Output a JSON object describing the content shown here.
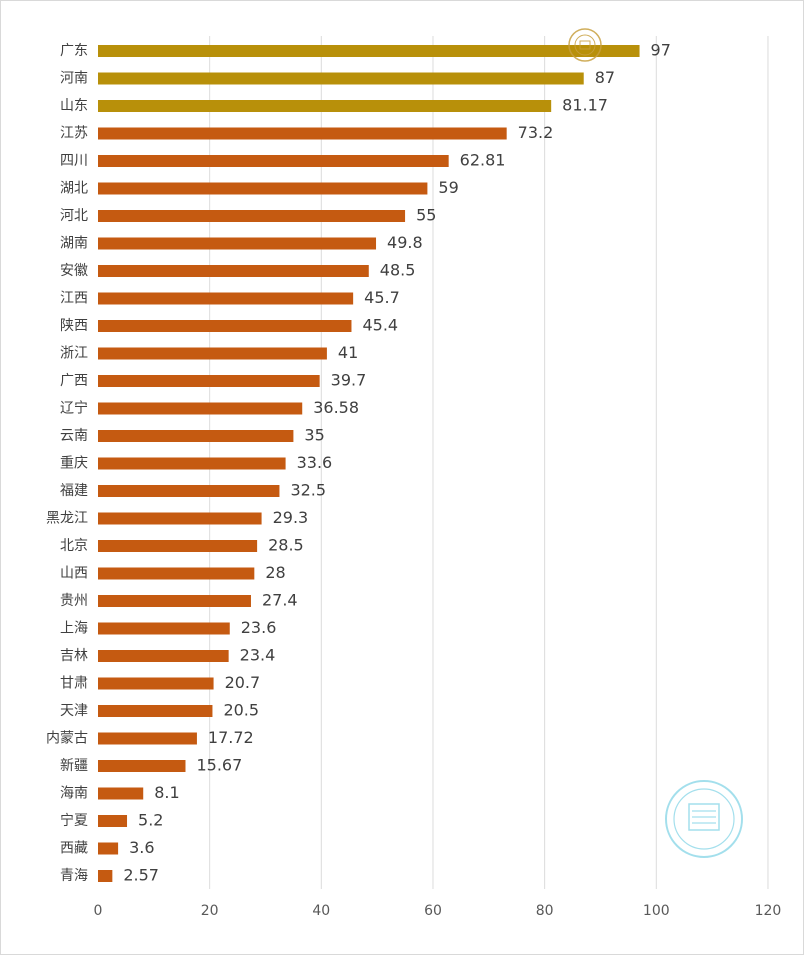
{
  "chart_data": {
    "type": "bar",
    "orientation": "horizontal",
    "categories": [
      "广东",
      "河南",
      "山东",
      "江苏",
      "四川",
      "湖北",
      "河北",
      "湖南",
      "安徽",
      "江西",
      "陕西",
      "浙江",
      "广西",
      "辽宁",
      "云南",
      "重庆",
      "福建",
      "黑龙江",
      "北京",
      "山西",
      "贵州",
      "上海",
      "吉林",
      "甘肃",
      "天津",
      "内蒙古",
      "新疆",
      "海南",
      "宁夏",
      "西藏",
      "青海"
    ],
    "values": [
      97,
      87,
      81.17,
      73.2,
      62.81,
      59,
      55,
      49.8,
      48.5,
      45.7,
      45.4,
      41,
      39.7,
      36.58,
      35,
      33.6,
      32.5,
      29.3,
      28.5,
      28,
      27.4,
      23.6,
      23.4,
      20.7,
      20.5,
      17.72,
      15.67,
      8.1,
      5.2,
      3.6,
      2.57
    ],
    "value_labels": [
      "97",
      "87",
      "81.17",
      "73.2",
      "62.81",
      "59",
      "55",
      "49.8",
      "48.5",
      "45.7",
      "45.4",
      "41",
      "39.7",
      "36.58",
      "35",
      "33.6",
      "32.5",
      "29.3",
      "28.5",
      "28",
      "27.4",
      "23.6",
      "23.4",
      "20.7",
      "20.5",
      "17.72",
      "15.67",
      "8.1",
      "5.2",
      "3.6",
      "2.57"
    ],
    "highlight_count": 3,
    "colors": {
      "highlight": "#B8900A",
      "default": "#C55A11"
    },
    "xlim": [
      0,
      120
    ],
    "xticks": [
      "0",
      "20",
      "40",
      "60",
      "80",
      "100",
      "120"
    ],
    "grid": "vertical",
    "legend": "none",
    "title": "",
    "xlabel": "",
    "ylabel": ""
  },
  "watermarks": [
    {
      "name": "seal-watermark-top",
      "color": "#C8A040"
    },
    {
      "name": "seal-watermark-bottom",
      "color": "#9ADCEB"
    }
  ]
}
